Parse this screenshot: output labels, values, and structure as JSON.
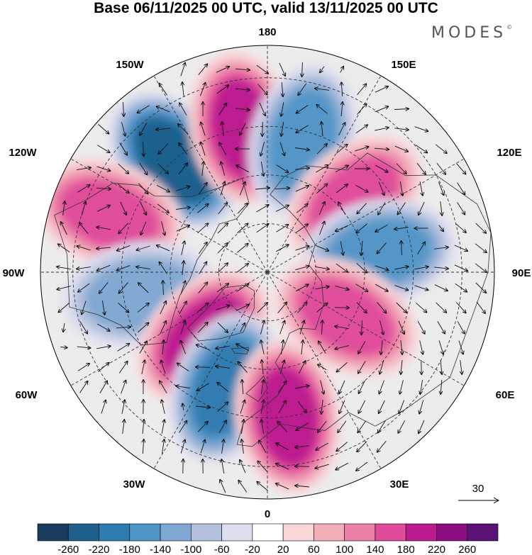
{
  "title": "Base 06/11/2025 00 UTC, valid 13/11/2025 00 UTC",
  "brand": {
    "name": "MODES",
    "mark": "©"
  },
  "longitude_labels": {
    "deg_0": "0",
    "deg_30e": "30E",
    "deg_60e": "60E",
    "deg_90e": "90E",
    "deg_120e": "120E",
    "deg_150e": "150E",
    "deg_180": "180",
    "deg_150w": "150W",
    "deg_120w": "120W",
    "deg_90w": "90W",
    "deg_60w": "60W",
    "deg_30w": "30W"
  },
  "reference_vector": {
    "label": "30"
  },
  "colorbar": {
    "labels": [
      "-260",
      "-220",
      "-180",
      "-140",
      "-100",
      "-60",
      "-20",
      "20",
      "60",
      "100",
      "140",
      "180",
      "220",
      "260"
    ],
    "colors": [
      "#173c5e",
      "#1f5f8c",
      "#2f7ab0",
      "#4f95c6",
      "#7ea8d1",
      "#b3c0dd",
      "#dcdeee",
      "#ffffff",
      "#f9d7d9",
      "#f2afbb",
      "#ec7fa7",
      "#df4b9a",
      "#bb1b8f",
      "#8e0e82",
      "#5a1276"
    ]
  },
  "features": [
    {
      "name": "negative-anomaly-alaska",
      "value": -220,
      "lon": -140,
      "lat": 45
    },
    {
      "name": "positive-anomaly-bering",
      "value": 190,
      "lon": -170,
      "lat": 45
    },
    {
      "name": "negative-anomaly-kamchatka",
      "value": -140,
      "lon": 165,
      "lat": 48
    },
    {
      "name": "positive-anomaly-east-pacific",
      "value": 140,
      "lon": -110,
      "lat": 38
    },
    {
      "name": "positive-anomaly-siberia",
      "value": 140,
      "lon": 130,
      "lat": 55
    },
    {
      "name": "negative-anomaly-central-asia",
      "value": -140,
      "lon": 100,
      "lat": 55
    },
    {
      "name": "positive-anomaly-ural",
      "value": 140,
      "lon": 60,
      "lat": 62
    },
    {
      "name": "negative-anomaly-hudson",
      "value": -100,
      "lon": -80,
      "lat": 50
    },
    {
      "name": "positive-anomaly-greenland",
      "value": 180,
      "lon": -45,
      "lat": 62
    },
    {
      "name": "negative-anomaly-north-atlantic",
      "value": -180,
      "lon": -20,
      "lat": 52
    },
    {
      "name": "positive-anomaly-europe",
      "value": 180,
      "lon": 8,
      "lat": 45
    }
  ]
}
